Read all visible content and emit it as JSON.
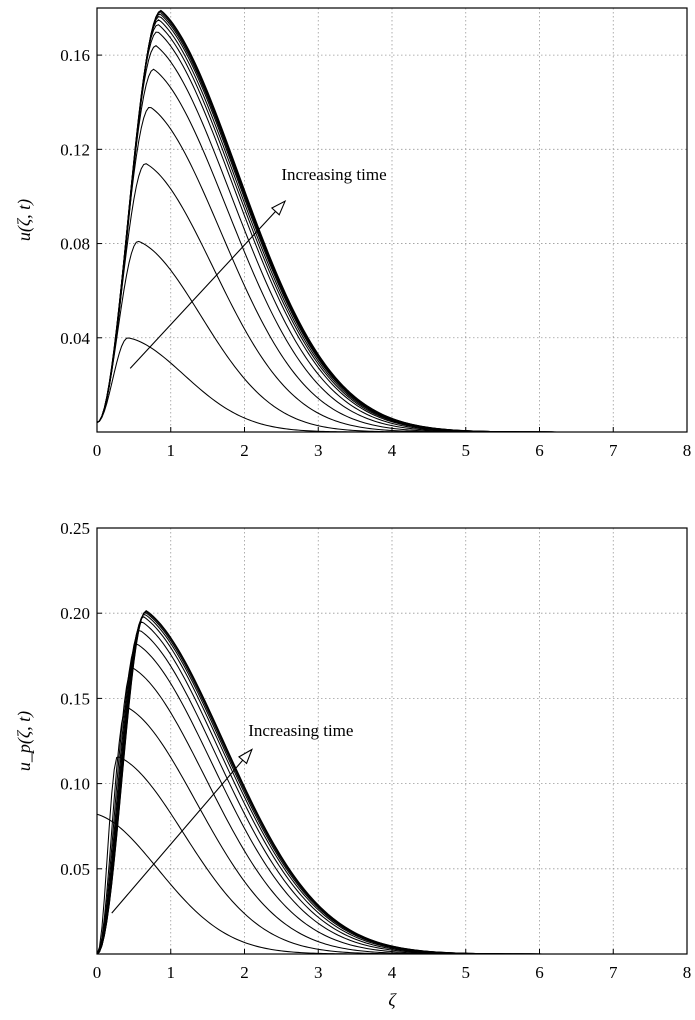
{
  "chart_data": [
    {
      "type": "line",
      "ylabel": "u(ζ, t)",
      "xlabel": "",
      "xlim": [
        0,
        8
      ],
      "ylim": [
        0,
        0.18
      ],
      "xticks": [
        "0",
        "1",
        "2",
        "3",
        "4",
        "5",
        "6",
        "7",
        "8"
      ],
      "yticks": [
        {
          "value": 0.04,
          "label": "0.04"
        },
        {
          "value": 0.08,
          "label": "0.08"
        },
        {
          "value": 0.12,
          "label": "0.12"
        },
        {
          "value": 0.16,
          "label": "0.16"
        }
      ],
      "grid": true,
      "annotation": {
        "text": "Increasing time",
        "arrow_from": [
          0.45,
          0.027
        ],
        "arrow_to": [
          2.55,
          0.098
        ],
        "text_at": [
          2.5,
          0.107
        ]
      },
      "series_shape": {
        "y_at_zero": 0.004,
        "decay_rate": 1.35
      },
      "series": [
        {
          "peak_x": 0.42,
          "peak_y": 0.04
        },
        {
          "peak_x": 0.56,
          "peak_y": 0.081
        },
        {
          "peak_x": 0.66,
          "peak_y": 0.114
        },
        {
          "peak_x": 0.72,
          "peak_y": 0.138
        },
        {
          "peak_x": 0.77,
          "peak_y": 0.154
        },
        {
          "peak_x": 0.8,
          "peak_y": 0.164
        },
        {
          "peak_x": 0.82,
          "peak_y": 0.17
        },
        {
          "peak_x": 0.83,
          "peak_y": 0.173
        },
        {
          "peak_x": 0.84,
          "peak_y": 0.175
        },
        {
          "peak_x": 0.85,
          "peak_y": 0.1765
        },
        {
          "peak_x": 0.855,
          "peak_y": 0.1775
        },
        {
          "peak_x": 0.86,
          "peak_y": 0.1782
        },
        {
          "peak_x": 0.865,
          "peak_y": 0.1787
        },
        {
          "peak_x": 0.87,
          "peak_y": 0.179
        }
      ]
    },
    {
      "type": "line",
      "ylabel": "u_p(ζ, t)",
      "xlabel": "ζ",
      "xlim": [
        0,
        8
      ],
      "ylim": [
        0,
        0.25
      ],
      "xticks": [
        "0",
        "1",
        "2",
        "3",
        "4",
        "5",
        "6",
        "7",
        "8"
      ],
      "yticks": [
        {
          "value": 0.05,
          "label": "0.05"
        },
        {
          "value": 0.1,
          "label": "0.10"
        },
        {
          "value": 0.15,
          "label": "0.15"
        },
        {
          "value": 0.2,
          "label": "0.20"
        },
        {
          "value": 0.25,
          "label": "0.25"
        }
      ],
      "grid": true,
      "annotation": {
        "text": "Increasing time",
        "arrow_from": [
          0.2,
          0.024
        ],
        "arrow_to": [
          2.1,
          0.12
        ],
        "text_at": [
          2.05,
          0.128
        ]
      },
      "series_shape": {
        "y_at_zero": 0.0,
        "decay_rate": 1.3
      },
      "series": [
        {
          "peak_x": 0.0,
          "peak_y": 0.082
        },
        {
          "peak_x": 0.28,
          "peak_y": 0.116
        },
        {
          "peak_x": 0.4,
          "peak_y": 0.145
        },
        {
          "peak_x": 0.48,
          "peak_y": 0.168
        },
        {
          "peak_x": 0.54,
          "peak_y": 0.182
        },
        {
          "peak_x": 0.58,
          "peak_y": 0.19
        },
        {
          "peak_x": 0.61,
          "peak_y": 0.195
        },
        {
          "peak_x": 0.63,
          "peak_y": 0.198
        },
        {
          "peak_x": 0.645,
          "peak_y": 0.1995
        },
        {
          "peak_x": 0.655,
          "peak_y": 0.2005
        },
        {
          "peak_x": 0.665,
          "peak_y": 0.201
        },
        {
          "peak_x": 0.67,
          "peak_y": 0.2015
        }
      ]
    }
  ]
}
